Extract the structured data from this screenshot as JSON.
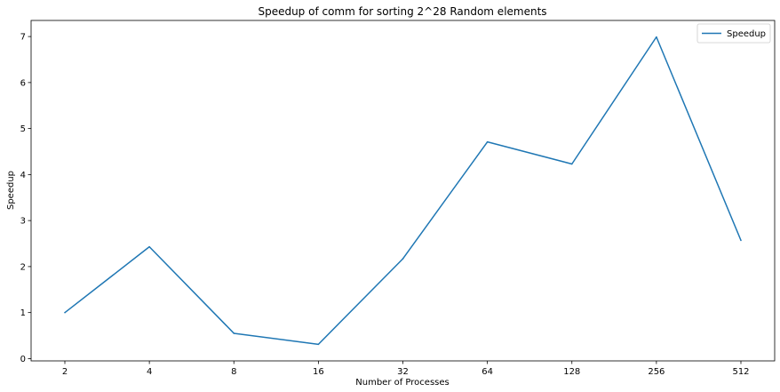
{
  "chart_data": {
    "type": "line",
    "title": "Speedup of comm for sorting 2^28 Random elements",
    "xlabel": "Number of Processes",
    "ylabel": "Speedup",
    "categories": [
      "2",
      "4",
      "8",
      "16",
      "32",
      "64",
      "128",
      "256",
      "512"
    ],
    "series": [
      {
        "name": "Speedup",
        "color": "#1f77b4",
        "values": [
          1.0,
          2.43,
          0.55,
          0.31,
          2.17,
          4.71,
          4.23,
          6.99,
          2.57
        ]
      }
    ],
    "ylim": [
      -0.05,
      7.35
    ],
    "yticks": [
      0,
      1,
      2,
      3,
      4,
      5,
      6,
      7
    ],
    "grid": false,
    "legend": "top-right"
  }
}
